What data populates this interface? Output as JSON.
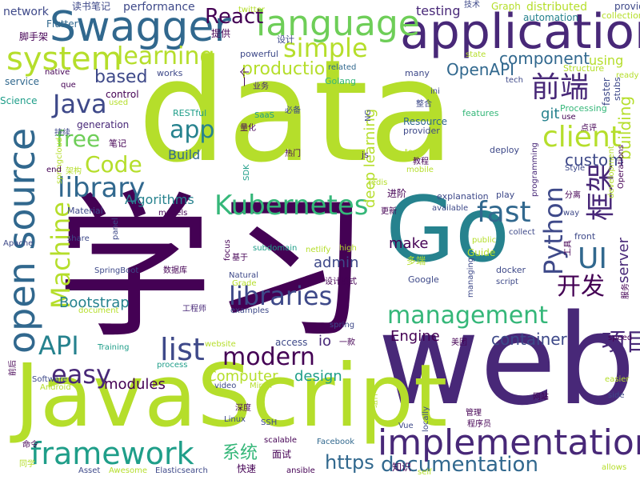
{
  "palette": {
    "dark_purple": "#440154",
    "purple": "#482878",
    "indigo": "#3e4989",
    "blue": "#31688e",
    "teal": "#26828e",
    "green_teal": "#1f9e89",
    "green": "#35b779",
    "lime": "#6ece58",
    "yellow_green": "#b5de2b",
    "yellow": "#fde725"
  },
  "words": [
    {
      "text": "data",
      "color": "#b5de2b"
    },
    {
      "text": "学习",
      "color": "#440154"
    },
    {
      "text": "web",
      "color": "#482878"
    },
    {
      "text": "JavaScript",
      "color": "#b5de2b"
    },
    {
      "text": "Go",
      "color": "#26828e"
    },
    {
      "text": "application",
      "color": "#482878"
    },
    {
      "text": "open source",
      "color": "#31688e"
    },
    {
      "text": "Swagger",
      "color": "#31688e"
    },
    {
      "text": "language",
      "color": "#6ece58"
    },
    {
      "text": "system",
      "color": "#b5de2b"
    },
    {
      "text": "implementation",
      "color": "#482878"
    },
    {
      "text": "framework",
      "color": "#1f9e89"
    },
    {
      "text": "Kubernetes",
      "color": "#35b779"
    },
    {
      "text": "Java",
      "color": "#3e4989"
    },
    {
      "text": "client",
      "color": "#b5de2b"
    },
    {
      "text": "management",
      "color": "#35b779"
    },
    {
      "text": "documentation",
      "color": "#31688e"
    },
    {
      "text": "library",
      "color": "#31688e"
    },
    {
      "text": "libraries",
      "color": "#3e4989"
    },
    {
      "text": "Python",
      "color": "#3e4989"
    },
    {
      "text": "框架",
      "color": "#482878"
    },
    {
      "text": "前端",
      "color": "#482878"
    },
    {
      "text": "simple",
      "color": "#b5de2b"
    },
    {
      "text": "learning",
      "color": "#b5de2b"
    },
    {
      "text": "fast",
      "color": "#31688e"
    },
    {
      "text": "Machine",
      "color": "#b5de2b"
    },
    {
      "text": "modern",
      "color": "#440154"
    },
    {
      "text": "easy",
      "color": "#482878"
    },
    {
      "text": "API",
      "color": "#26828e"
    },
    {
      "text": "list",
      "color": "#3e4989"
    },
    {
      "text": "UI",
      "color": "#31688e"
    },
    {
      "text": "开发",
      "color": "#440154"
    },
    {
      "text": "项目",
      "color": "#482878"
    },
    {
      "text": "React",
      "color": "#440154"
    },
    {
      "text": "free",
      "color": "#6ece58"
    },
    {
      "text": "app",
      "color": "#26828e"
    },
    {
      "text": "Code",
      "color": "#b5de2b"
    },
    {
      "text": "https",
      "color": "#31688e"
    },
    {
      "text": "container",
      "color": "#3e4989"
    },
    {
      "text": "production",
      "color": "#b5de2b"
    },
    {
      "text": "component",
      "color": "#31688e"
    },
    {
      "text": "based",
      "color": "#3e4989"
    },
    {
      "text": "OpenAPI",
      "color": "#31688e"
    },
    {
      "text": "building",
      "color": "#b5de2b"
    },
    {
      "text": "custom",
      "color": "#3e4989"
    },
    {
      "text": "server",
      "color": "#482878"
    },
    {
      "text": "Bootstrap",
      "color": "#26828e"
    },
    {
      "text": "Computer",
      "color": "#b5de2b"
    },
    {
      "text": "modules",
      "color": "#440154"
    },
    {
      "text": "design",
      "color": "#1f9e89"
    },
    {
      "text": "Engine",
      "color": "#440154"
    },
    {
      "text": "系统",
      "color": "#35b779"
    },
    {
      "text": "make",
      "color": "#440154"
    },
    {
      "text": "admin",
      "color": "#3e4989"
    },
    {
      "text": "deep learning",
      "color": "#b5de2b"
    },
    {
      "text": "Algorithms",
      "color": "#26828e"
    },
    {
      "text": "Build",
      "color": "#31688e"
    },
    {
      "text": "io",
      "color": "#482878"
    },
    {
      "text": "git",
      "color": "#26828e"
    },
    {
      "text": "using",
      "color": "#b5de2b"
    },
    {
      "text": "testing",
      "color": "#482878"
    },
    {
      "text": "performance",
      "color": "#3e4989"
    },
    {
      "text": "network",
      "color": "#3e4989"
    },
    {
      "text": "读书笔记",
      "color": "#3e4989"
    },
    {
      "text": "技术",
      "color": "#3e4989"
    },
    {
      "text": "Graph",
      "color": "#b5de2b"
    },
    {
      "text": "distributed",
      "color": "#b5de2b"
    },
    {
      "text": "provides",
      "color": "#3e4989"
    },
    {
      "text": "collection",
      "color": "#b5de2b"
    },
    {
      "text": "automation",
      "color": "#26828e"
    },
    {
      "text": "Flutter",
      "color": "#31688e"
    },
    {
      "text": "脚手架",
      "color": "#440154"
    },
    {
      "text": "提供",
      "color": "#440154"
    },
    {
      "text": "设计",
      "color": "#3e4989"
    },
    {
      "text": "powerful",
      "color": "#3e4989"
    },
    {
      "text": "state",
      "color": "#b5de2b"
    },
    {
      "text": "tech",
      "color": "#3e4989"
    },
    {
      "text": "service",
      "color": "#31688e"
    },
    {
      "text": "native",
      "color": "#440154"
    },
    {
      "text": "que",
      "color": "#440154"
    },
    {
      "text": "works",
      "color": "#3e4989"
    },
    {
      "text": "related",
      "color": "#31688e"
    },
    {
      "text": "Golang",
      "color": "#35b779"
    },
    {
      "text": "many",
      "color": "#3e4989"
    },
    {
      "text": "Structure",
      "color": "#b5de2b"
    },
    {
      "text": "ready",
      "color": "#b5de2b"
    },
    {
      "text": "faster",
      "color": "#3e4989"
    },
    {
      "text": "stubs",
      "color": "#3e4989"
    },
    {
      "text": "Science",
      "color": "#1f9e89"
    },
    {
      "text": "used",
      "color": "#b5de2b"
    },
    {
      "text": "control",
      "color": "#440154"
    },
    {
      "text": "业务",
      "color": "#482878"
    },
    {
      "text": "ini",
      "color": "#3e4989"
    },
    {
      "text": "NG",
      "color": "#3e4989"
    },
    {
      "text": "整合",
      "color": "#3e4989"
    },
    {
      "text": "Processing",
      "color": "#35b779"
    },
    {
      "text": "use",
      "color": "#440154"
    },
    {
      "text": "RESTful",
      "color": "#1f9e89"
    },
    {
      "text": "必备",
      "color": "#3e4989"
    },
    {
      "text": "SaaS",
      "color": "#1f9e89"
    },
    {
      "text": "features",
      "color": "#35b779"
    },
    {
      "text": "点评",
      "color": "#440154"
    },
    {
      "text": "generation",
      "color": "#482878"
    },
    {
      "text": "量化",
      "color": "#440154"
    },
    {
      "text": "Resource",
      "color": "#31688e"
    },
    {
      "text": "provider",
      "color": "#3e4989"
    },
    {
      "text": "持续",
      "color": "#3e4989"
    },
    {
      "text": "笔记",
      "color": "#440154"
    },
    {
      "text": "springcloud",
      "color": "#b5de2b"
    },
    {
      "text": "热门",
      "color": "#440154"
    },
    {
      "text": "deploy",
      "color": "#3e4989"
    },
    {
      "text": "programming",
      "color": "#482878"
    },
    {
      "text": "Style",
      "color": "#3e4989"
    },
    {
      "text": "end",
      "color": "#440154"
    },
    {
      "text": "架构",
      "color": "#b5de2b"
    },
    {
      "text": "SDK",
      "color": "#1f9e89"
    },
    {
      "text": "redis",
      "color": "#b5de2b"
    },
    {
      "text": "教程",
      "color": "#440154"
    },
    {
      "text": "tool",
      "color": "#b5de2b"
    },
    {
      "text": "mobile",
      "color": "#b5de2b"
    },
    {
      "text": "development",
      "color": "#b5de2b"
    },
    {
      "text": "Operations",
      "color": "#440154"
    },
    {
      "text": "js",
      "color": "#482878"
    },
    {
      "text": "Material",
      "color": "#3e4989"
    },
    {
      "text": "models",
      "color": "#440154"
    },
    {
      "text": "进阶",
      "color": "#440154"
    },
    {
      "text": "explanation",
      "color": "#3e4989"
    },
    {
      "text": "play",
      "color": "#3e4989"
    },
    {
      "text": "分离",
      "color": "#440154"
    },
    {
      "text": "way",
      "color": "#3e4989"
    },
    {
      "text": "更新",
      "color": "#440154"
    },
    {
      "text": "available",
      "color": "#3e4989"
    },
    {
      "text": "collect",
      "color": "#3e4989"
    },
    {
      "text": "share",
      "color": "#3e4989"
    },
    {
      "text": "panel",
      "color": "#3e4989"
    },
    {
      "text": "subdomain",
      "color": "#1f9e89"
    },
    {
      "text": "netlify",
      "color": "#b5de2b"
    },
    {
      "text": "high",
      "color": "#b5de2b"
    },
    {
      "text": "public",
      "color": "#b5de2b"
    },
    {
      "text": "Guide",
      "color": "#b5de2b"
    },
    {
      "text": "front",
      "color": "#3e4989"
    },
    {
      "text": "Apache",
      "color": "#3e4989"
    },
    {
      "text": "focus",
      "color": "#440154"
    },
    {
      "text": "基于",
      "color": "#440154"
    },
    {
      "text": "工具",
      "color": "#440154"
    },
    {
      "text": "SpringBoot",
      "color": "#3e4989"
    },
    {
      "text": "数据库",
      "color": "#440154"
    },
    {
      "text": "Natural",
      "color": "#3e4989"
    },
    {
      "text": "多端",
      "color": "#b5de2b"
    },
    {
      "text": "Grade",
      "color": "#b5de2b"
    },
    {
      "text": "docker",
      "color": "#3e4989"
    },
    {
      "text": "Google",
      "color": "#3e4989"
    },
    {
      "text": "managing",
      "color": "#3e4989"
    },
    {
      "text": "script",
      "color": "#3e4989"
    },
    {
      "text": "设计模式",
      "color": "#440154"
    },
    {
      "text": "服务",
      "color": "#440154"
    },
    {
      "text": "document",
      "color": "#b5de2b"
    },
    {
      "text": "工程师",
      "color": "#482878"
    },
    {
      "text": "examples",
      "color": "#3e4989"
    },
    {
      "text": "spring",
      "color": "#3e4989"
    },
    {
      "text": "Training",
      "color": "#1f9e89"
    },
    {
      "text": "website",
      "color": "#b5de2b"
    },
    {
      "text": "access",
      "color": "#3e4989"
    },
    {
      "text": "一款",
      "color": "#440154"
    },
    {
      "text": "美团",
      "color": "#440154"
    },
    {
      "text": "speed",
      "color": "#440154"
    },
    {
      "text": "前后",
      "color": "#440154"
    },
    {
      "text": "process",
      "color": "#1f9e89"
    },
    {
      "text": "Software",
      "color": "#3e4989"
    },
    {
      "text": "Android",
      "color": "#b5de2b"
    },
    {
      "text": "video",
      "color": "#3e4989"
    },
    {
      "text": "Mirror",
      "color": "#b5de2b"
    },
    {
      "text": "easier",
      "color": "#b5de2b"
    },
    {
      "text": "side",
      "color": "#3e4989"
    },
    {
      "text": "网站",
      "color": "#440154"
    },
    {
      "text": "深度",
      "color": "#440154"
    },
    {
      "text": "组件",
      "color": "#b5de2b"
    },
    {
      "text": "管理",
      "color": "#440154"
    },
    {
      "text": "Linux",
      "color": "#3e4989"
    },
    {
      "text": "SSH",
      "color": "#3e4989"
    },
    {
      "text": "Vue",
      "color": "#3e4989"
    },
    {
      "text": "locally",
      "color": "#3e4989"
    },
    {
      "text": "程序员",
      "color": "#440154"
    },
    {
      "text": "命令",
      "color": "#440154"
    },
    {
      "text": "scalable",
      "color": "#440154"
    },
    {
      "text": "面试",
      "color": "#440154"
    },
    {
      "text": "Facebook",
      "color": "#31688e"
    },
    {
      "text": "同学",
      "color": "#b5de2b"
    },
    {
      "text": "Asset",
      "color": "#3e4989"
    },
    {
      "text": "Awesome",
      "color": "#b5de2b"
    },
    {
      "text": "Elasticsearch",
      "color": "#3e4989"
    },
    {
      "text": "快速",
      "color": "#440154"
    },
    {
      "text": "ansible",
      "color": "#440154"
    },
    {
      "text": "知识",
      "color": "#440154"
    },
    {
      "text": "self",
      "color": "#b5de2b"
    },
    {
      "text": "allows",
      "color": "#b5de2b"
    },
    {
      "text": "twitter",
      "color": "#b5de2b"
    },
    {
      "text": "一个",
      "color": "#440154"
    }
  ]
}
